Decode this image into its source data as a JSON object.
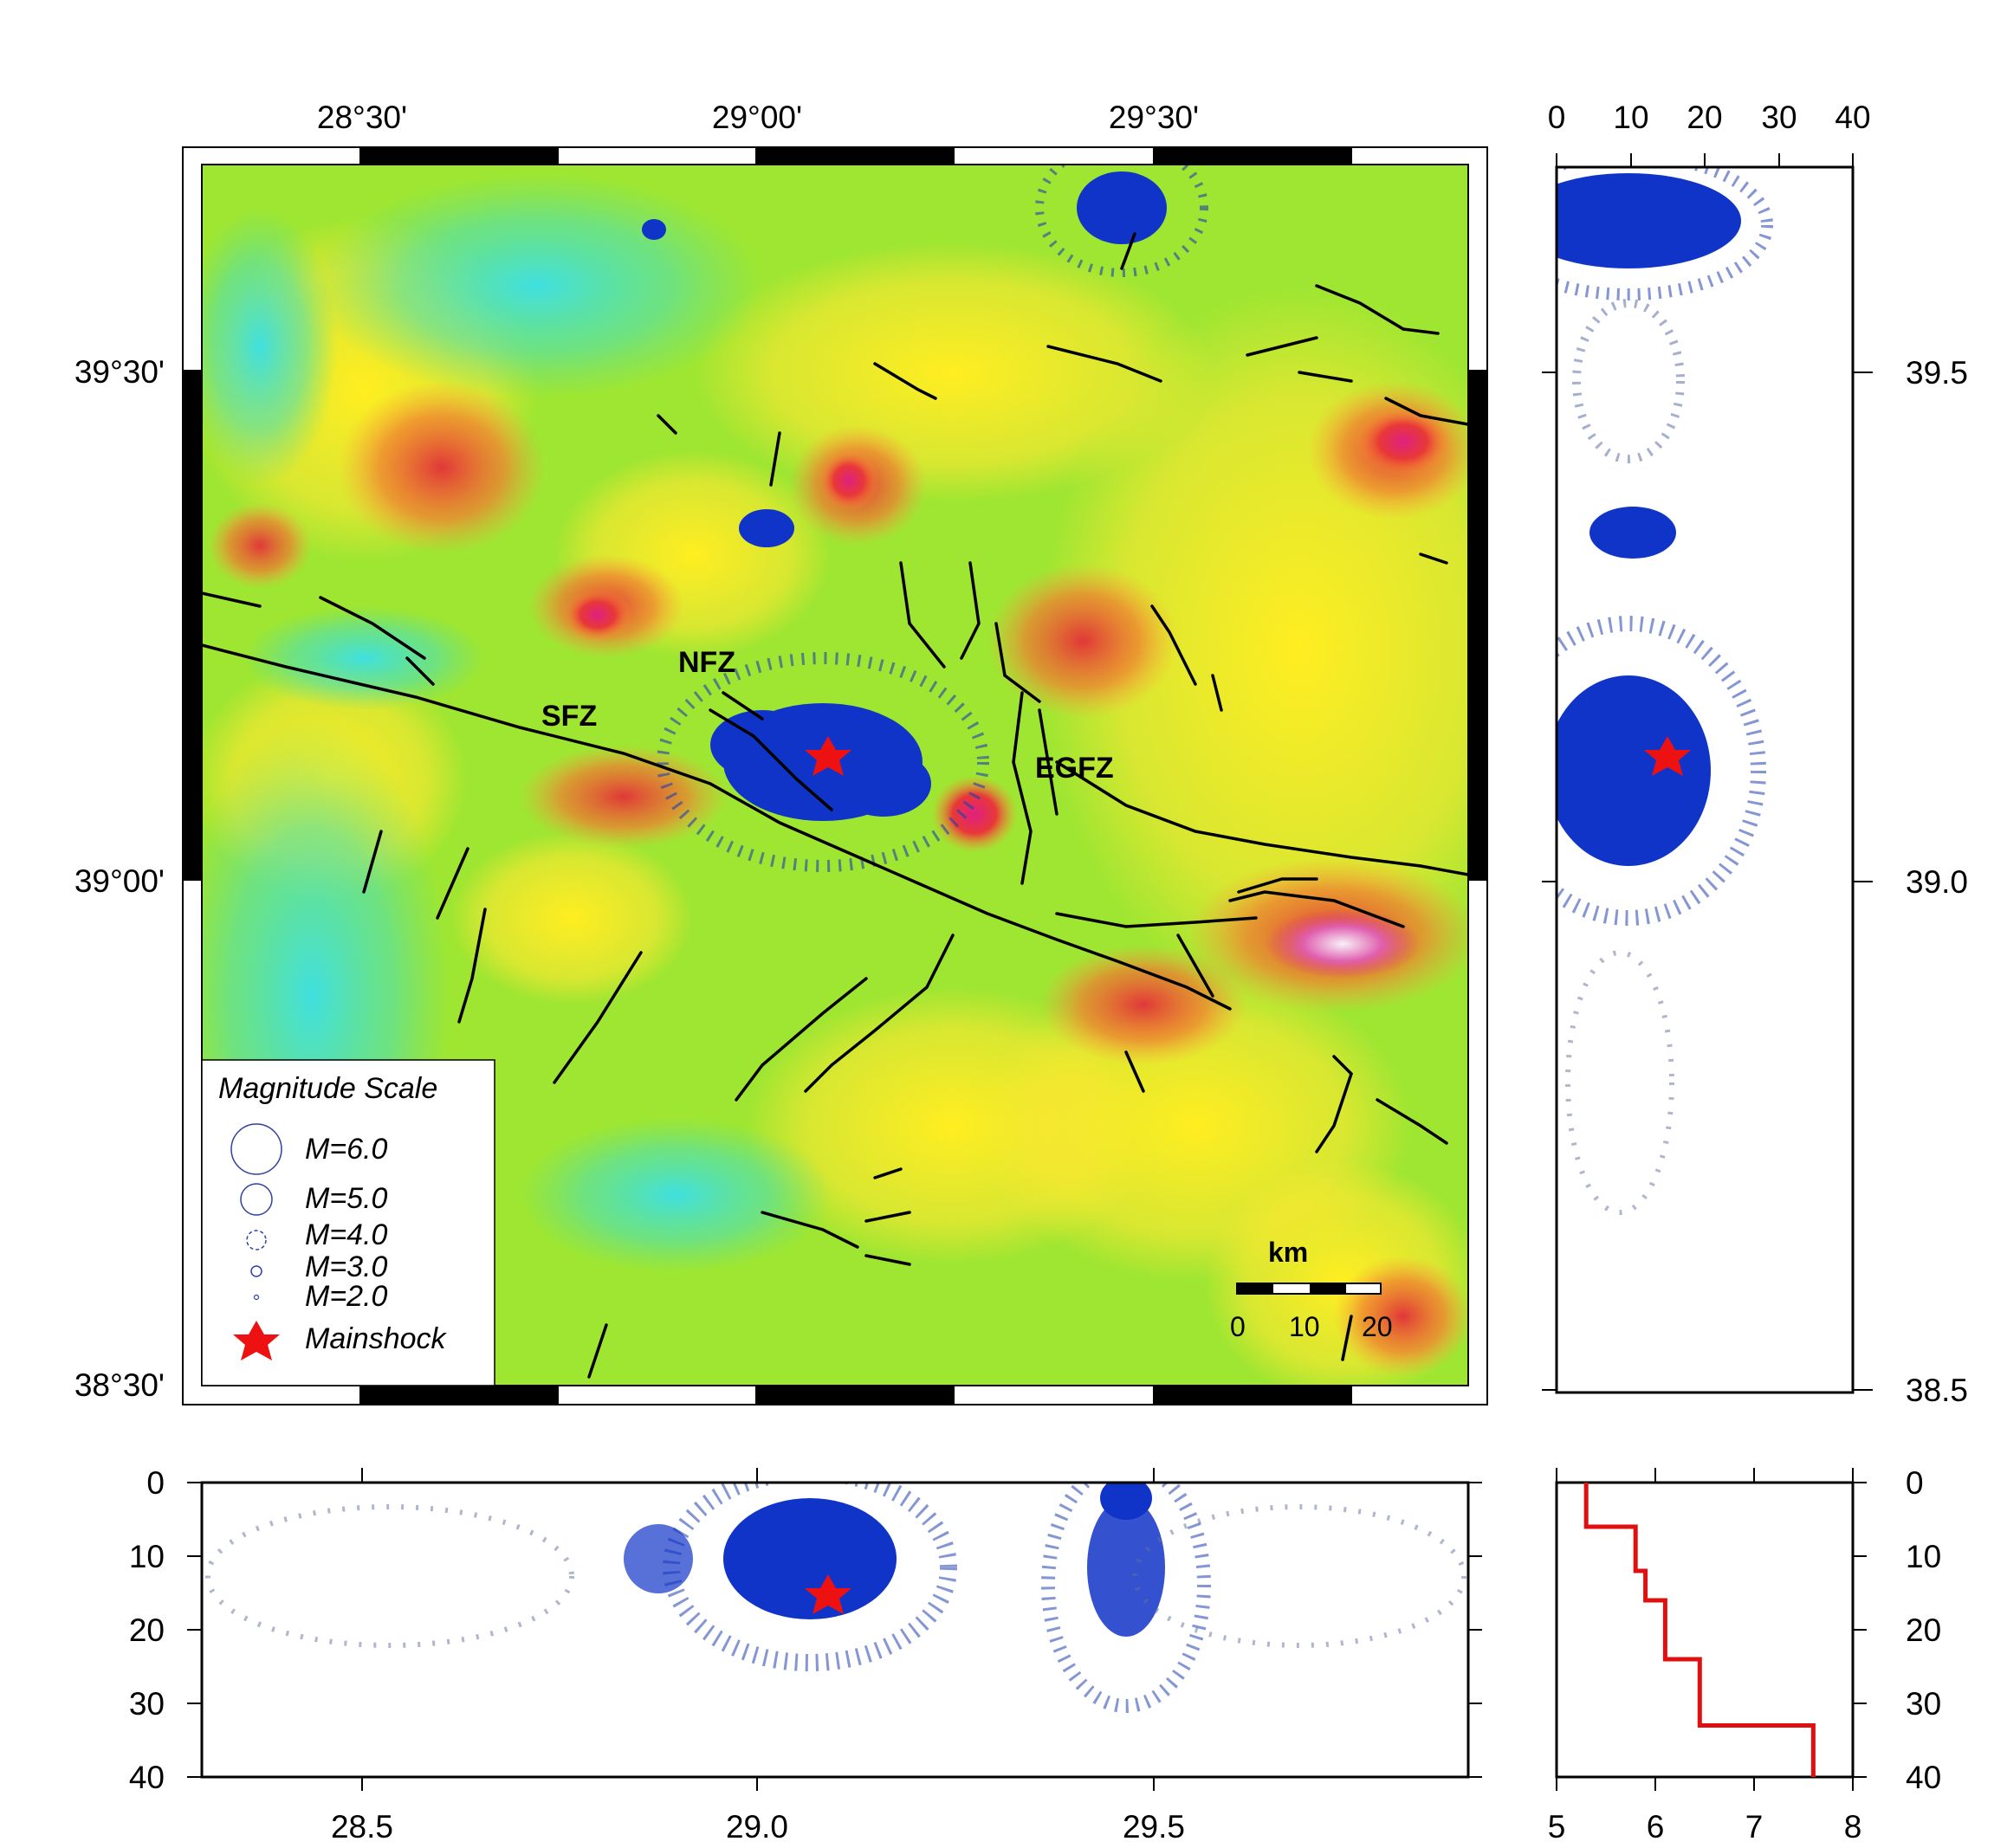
{
  "map": {
    "top_ticks": [
      "28°30'",
      "29°00'",
      "29°30'"
    ],
    "left_ticks": [
      "39°30'",
      "39°00'",
      "38°30'"
    ],
    "fault_labels": [
      "NFZ",
      "SFZ",
      "EGFZ"
    ]
  },
  "legend": {
    "title": "Magnitude Scale",
    "items": [
      "M=6.0",
      "M=5.0",
      "M=4.0",
      "M=3.0",
      "M=2.0",
      "Mainshock"
    ]
  },
  "scalebar": {
    "unit": "km",
    "labels": [
      "0",
      "10",
      "20"
    ]
  },
  "lat_section": {
    "depth_ticks": [
      "0",
      "10",
      "20",
      "30",
      "40"
    ],
    "lat_ticks": [
      "39.5",
      "39.0",
      "38.5"
    ]
  },
  "lon_section": {
    "lon_ticks": [
      "28.5",
      "29.0",
      "29.5"
    ],
    "depth_ticks": [
      "0",
      "10",
      "20",
      "30",
      "40"
    ]
  },
  "velocity_model": {
    "vel_ticks": [
      "5",
      "6",
      "7",
      "8"
    ],
    "depth_ticks": [
      "0",
      "10",
      "20",
      "30",
      "40"
    ]
  },
  "chart_data": [
    {
      "type": "line",
      "name": "velocity-model",
      "xlabel": "",
      "ylabel": "",
      "xlim": [
        5,
        8
      ],
      "ylim": [
        40,
        0
      ],
      "points": [
        [
          5.3,
          0
        ],
        [
          5.3,
          6
        ],
        [
          5.8,
          6
        ],
        [
          5.8,
          12
        ],
        [
          5.9,
          12
        ],
        [
          5.9,
          16
        ],
        [
          6.1,
          16
        ],
        [
          6.1,
          24
        ],
        [
          6.45,
          24
        ],
        [
          6.45,
          33
        ],
        [
          7.6,
          33
        ],
        [
          7.6,
          40
        ]
      ]
    }
  ],
  "colors": {
    "event_blue": "#1034c8",
    "event_grey": "#6a6a8a",
    "star_red": "#ee1111",
    "velocity_line": "#e01010",
    "faults": "#000000"
  }
}
